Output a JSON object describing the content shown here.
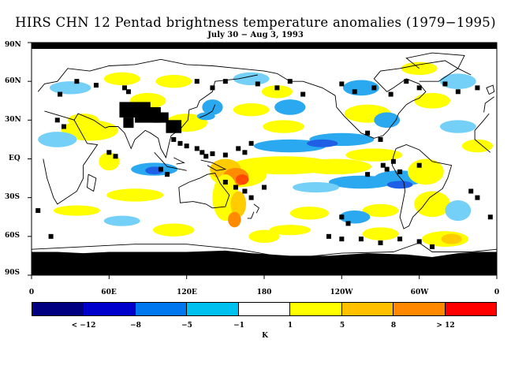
{
  "title": "HIRS CHN 12 Pentad brightness temperature anomalies (1979−1995)",
  "subtitle": "July 30 − Aug 3, 1993",
  "lat_labels": [
    "90N",
    "60N",
    "30N",
    "EQ",
    "30S",
    "60S",
    "90S"
  ],
  "lon_labels": [
    "0",
    "60E",
    "120E",
    "180",
    "120W",
    "60W",
    "0"
  ],
  "colorbar": {
    "unit": "K",
    "labels": [
      "< −12",
      "−8",
      "−5",
      "−1",
      "1",
      "5",
      "8",
      "> 12"
    ],
    "colors": [
      "#000080",
      "#0000cc",
      "#0077ee",
      "#00c0f0",
      "#ffffff",
      "#ffff00",
      "#ffc000",
      "#ff8800",
      "#ff0000"
    ]
  },
  "map_colors": {
    "no_data": "#000000",
    "coastline": "#000000",
    "neg_strong": "#1e5fe6",
    "neg_mid": "#2aa8f0",
    "neg_light": "#74d0f7",
    "pos_light": "#ffff00",
    "pos_mid": "#ffcc00",
    "pos_strong": "#ff8c00",
    "pos_max": "#ff4a00"
  }
}
